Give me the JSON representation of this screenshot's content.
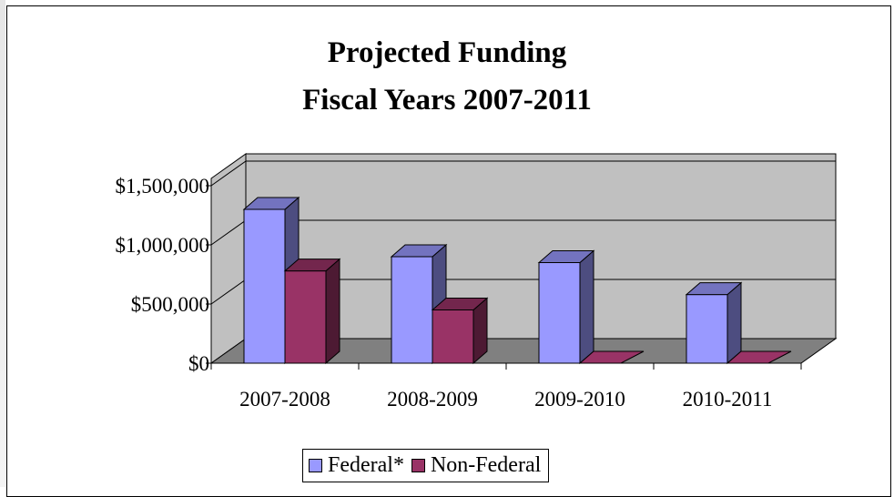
{
  "chart_data": {
    "type": "bar",
    "title": "Projected Funding",
    "subtitle": "Fiscal Years 2007-2011",
    "categories": [
      "2007-2008",
      "2008-2009",
      "2009-2010",
      "2010-2011"
    ],
    "series": [
      {
        "name": "Federal*",
        "values": [
          1300000,
          900000,
          850000,
          580000
        ],
        "color": "#9999ff"
      },
      {
        "name": "Non-Federal",
        "values": [
          780000,
          450000,
          0,
          0
        ],
        "color": "#993366"
      }
    ],
    "y_ticks": [
      "$0",
      "$500,000",
      "$1,000,000",
      "$1,500,000"
    ],
    "ylim": [
      0,
      1500000
    ],
    "grid": true,
    "legend_position": "bottom",
    "style": "3d-clustered-column"
  }
}
